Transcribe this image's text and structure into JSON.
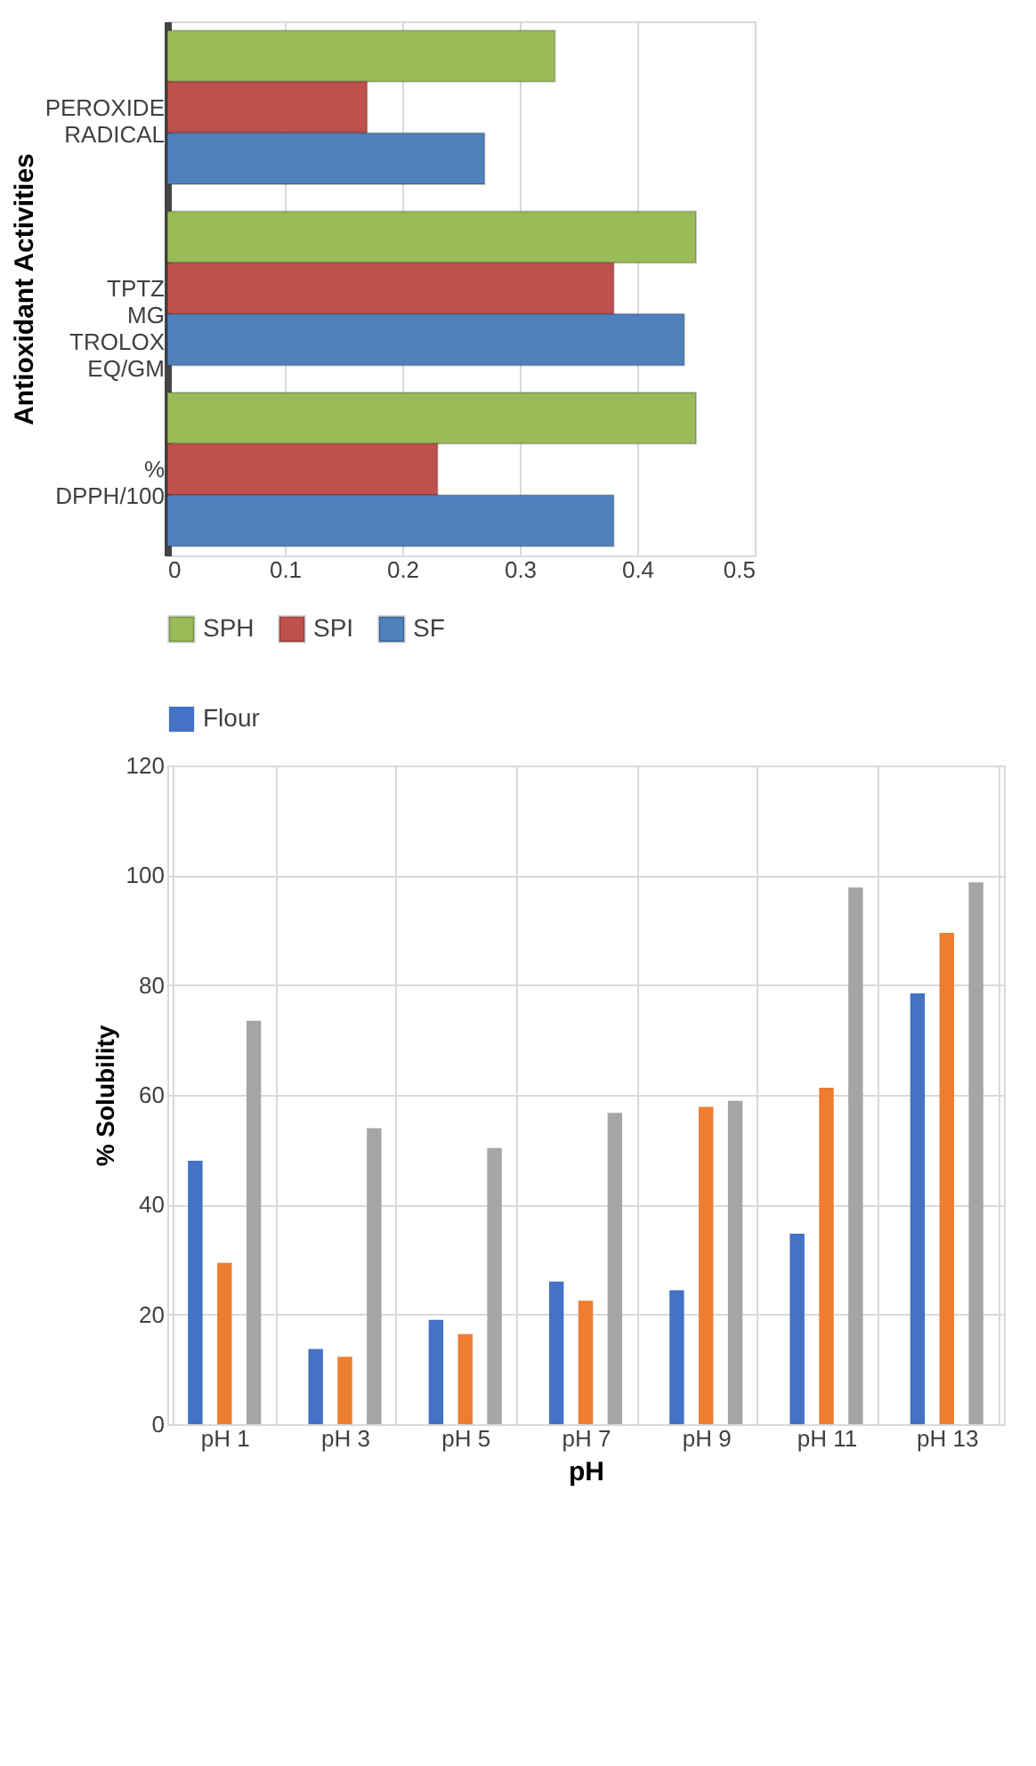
{
  "chart_data": [
    {
      "type": "bar",
      "orientation": "horizontal",
      "ylabel": "Antioxidant Activities",
      "categories": [
        "PEROXIDE RADICAL",
        "TPTZ MG TROLOX EQ/GM",
        "% DPPH/100"
      ],
      "series": [
        {
          "name": "SPH",
          "color": "#9bbb59",
          "values": [
            0.33,
            0.45,
            0.45
          ]
        },
        {
          "name": "SPI",
          "color": "#c0504d",
          "values": [
            0.17,
            0.38,
            0.23
          ]
        },
        {
          "name": "SF",
          "color": "#4f81bd",
          "values": [
            0.27,
            0.44,
            0.38
          ]
        }
      ],
      "xlim": [
        0,
        0.5
      ],
      "xticks": [
        0,
        0.1,
        0.2,
        0.3,
        0.4,
        0.5
      ],
      "grid": "x",
      "legend": "bottom"
    },
    {
      "type": "bar",
      "xlabel": "pH",
      "ylabel": "% Solubility",
      "categories": [
        "pH 1",
        "pH 3",
        "pH 5",
        "pH 7",
        "pH 9",
        "pH 11",
        "pH 13"
      ],
      "series": [
        {
          "name": "Flour",
          "color": "#4472c4",
          "values": [
            48,
            13.7,
            19,
            26,
            24.4,
            34.7,
            78.5
          ]
        },
        {
          "color": "#ed7d31",
          "values": [
            29.4,
            12.3,
            16.4,
            22.5,
            57.8,
            61.3,
            89.5
          ]
        },
        {
          "color": "#a5a5a5",
          "values": [
            73.5,
            53.9,
            50.3,
            56.7,
            58.9,
            97.8,
            98.7
          ]
        }
      ],
      "ylim": [
        0,
        120
      ],
      "yticks": [
        0,
        20,
        40,
        60,
        80,
        100,
        120
      ],
      "grid": true,
      "legend": "top"
    }
  ]
}
